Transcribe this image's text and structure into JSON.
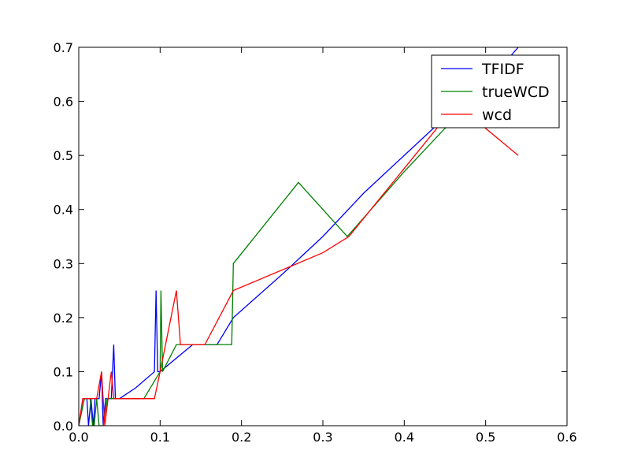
{
  "chart_data": {
    "type": "line",
    "title": "",
    "xlabel": "",
    "ylabel": "",
    "xlim": [
      0.0,
      0.6
    ],
    "ylim": [
      0.0,
      0.7
    ],
    "x_ticks": [
      "0.0",
      "0.1",
      "0.2",
      "0.3",
      "0.4",
      "0.5",
      "0.6"
    ],
    "y_ticks": [
      "0.0",
      "0.1",
      "0.2",
      "0.3",
      "0.4",
      "0.5",
      "0.6",
      "0.7"
    ],
    "grid": false,
    "legend_position": "top-right",
    "series": [
      {
        "name": "TFIDF",
        "color": "#0000ff",
        "x": [
          0.0,
          0.005,
          0.01,
          0.012,
          0.015,
          0.018,
          0.02,
          0.025,
          0.028,
          0.03,
          0.033,
          0.035,
          0.04,
          0.043,
          0.045,
          0.05,
          0.07,
          0.093,
          0.095,
          0.097,
          0.1,
          0.14,
          0.17,
          0.19,
          0.25,
          0.3,
          0.35,
          0.4,
          0.45,
          0.5,
          0.54
        ],
        "y": [
          0.0,
          0.05,
          0.05,
          0.0,
          0.05,
          0.0,
          0.05,
          0.05,
          0.1,
          0.0,
          0.05,
          0.05,
          0.05,
          0.15,
          0.05,
          0.05,
          0.07,
          0.1,
          0.25,
          0.1,
          0.1,
          0.15,
          0.15,
          0.2,
          0.28,
          0.35,
          0.43,
          0.5,
          0.57,
          0.63,
          0.7
        ]
      },
      {
        "name": "trueWCD",
        "color": "#008000",
        "x": [
          0.0,
          0.007,
          0.014,
          0.017,
          0.019,
          0.022,
          0.025,
          0.03,
          0.035,
          0.05,
          0.08,
          0.1,
          0.101,
          0.103,
          0.12,
          0.15,
          0.18,
          0.188,
          0.19,
          0.27,
          0.33,
          0.4,
          0.45,
          0.5
        ],
        "y": [
          0.0,
          0.05,
          0.05,
          0.0,
          0.0,
          0.05,
          0.0,
          0.0,
          0.05,
          0.05,
          0.05,
          0.1,
          0.25,
          0.1,
          0.15,
          0.15,
          0.15,
          0.15,
          0.3,
          0.45,
          0.35,
          0.47,
          0.55,
          0.6
        ]
      },
      {
        "name": "wcd",
        "color": "#ff0000",
        "x": [
          0.0,
          0.005,
          0.012,
          0.017,
          0.022,
          0.028,
          0.032,
          0.036,
          0.04,
          0.043,
          0.046,
          0.05,
          0.075,
          0.093,
          0.1,
          0.12,
          0.125,
          0.155,
          0.19,
          0.3,
          0.332,
          0.44,
          0.46,
          0.54
        ],
        "y": [
          0.0,
          0.05,
          0.05,
          0.05,
          0.05,
          0.1,
          0.0,
          0.05,
          0.1,
          0.05,
          0.05,
          0.05,
          0.05,
          0.05,
          0.1,
          0.25,
          0.15,
          0.15,
          0.25,
          0.32,
          0.35,
          0.55,
          0.6,
          0.5
        ]
      }
    ]
  }
}
